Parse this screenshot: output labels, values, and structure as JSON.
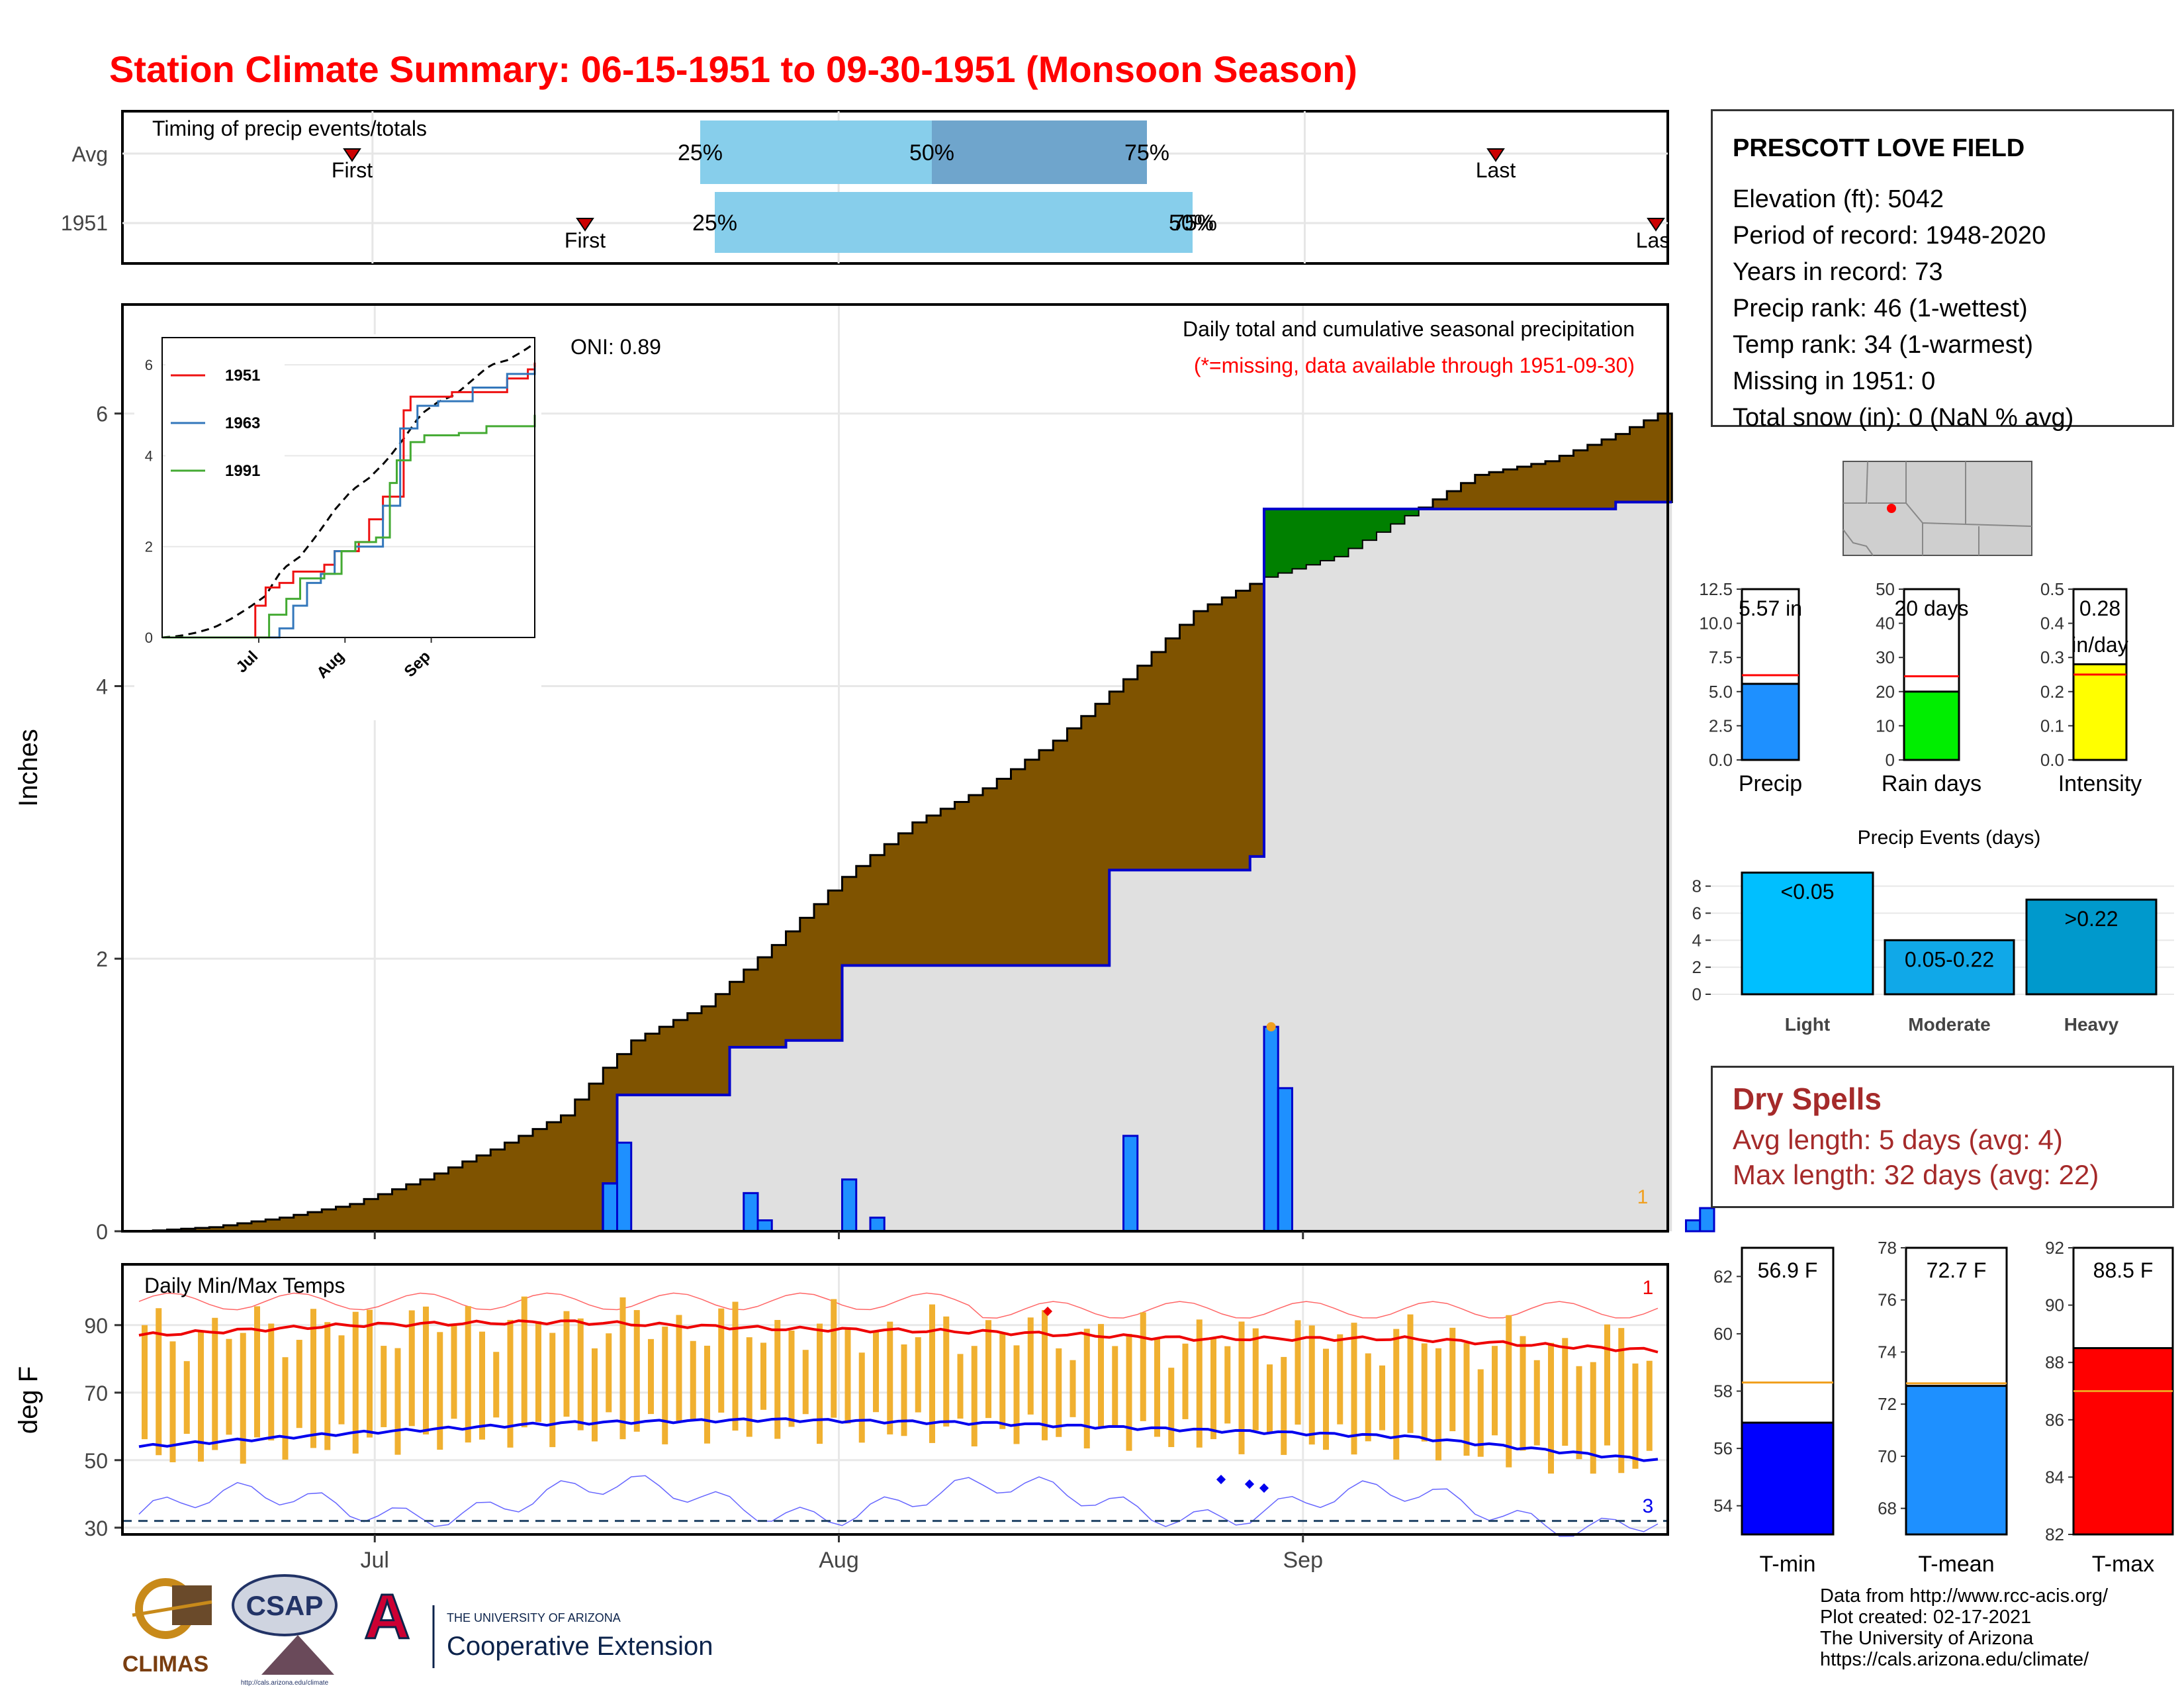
{
  "title": "Station Climate Summary: 06-15-1951 to 09-30-1951 (Monsoon Season)",
  "timing": {
    "label": "Timing of precip events/totals",
    "rows": [
      "Avg",
      "1951"
    ],
    "avg": {
      "first_label": "First",
      "last_label": "Last",
      "p25": "25%",
      "p50": "50%",
      "p75": "75%"
    },
    "year": {
      "first_label": "First",
      "last_label": "Last",
      "p25": "25%",
      "p50": "50%",
      "p75": "75%"
    },
    "colors": {
      "q1": "#87ceeb",
      "q2": "#6fa5cc",
      "marker": "#cc0000"
    }
  },
  "main": {
    "ylabel": "Inches",
    "oni": "ONI: 0.89",
    "caption": "Daily total and cumulative seasonal precipitation",
    "missing_note": "(*=missing, data available through 1951-09-30)",
    "yticks": [
      "0",
      "2",
      "4",
      "6"
    ],
    "xticks": [
      "Jul",
      "Aug",
      "Sep"
    ],
    "marker_1": "1",
    "colors": {
      "avg_fill": "#7f5300",
      "deficit": "#008000",
      "obs_fill": "#e0e0e0",
      "line": "#0000cc",
      "bars": "#1e90ff"
    }
  },
  "inset": {
    "yticks": [
      "0",
      "2",
      "4",
      "6"
    ],
    "xticks": [
      "Jul",
      "Aug",
      "Sep"
    ],
    "legend": [
      "1951",
      "1963",
      "1991"
    ],
    "colors": [
      "#ee1111",
      "#3377bb",
      "#44aa33"
    ]
  },
  "temps": {
    "label": "Daily Min/Max Temps",
    "ylabel": "deg F",
    "yticks": [
      "30",
      "50",
      "70",
      "90"
    ],
    "xticks": [
      "Jul",
      "Aug",
      "Sep"
    ],
    "marker_hi": "1",
    "marker_lo": "3"
  },
  "station": {
    "name": "PRESCOTT LOVE FIELD",
    "lines": [
      "Elevation (ft): 5042",
      "Period of record: 1948-2020",
      "Years in record: 73",
      "Precip rank: 46 (1-wettest)",
      "Temp rank: 34 (1-warmest)",
      "Missing in 1951: 0",
      "Total snow (in): 0 (NaN % avg)"
    ]
  },
  "summary_bars": [
    {
      "name": "Precip",
      "label": "5.57 in",
      "value": 5.57,
      "avg": 6.2,
      "max": 12.5,
      "yticks": [
        "0.0",
        "2.5",
        "5.0",
        "7.5",
        "10.0",
        "12.5"
      ],
      "color": "#1e90ff"
    },
    {
      "name": "Rain days",
      "label": "20 days",
      "value": 20,
      "avg": 24.5,
      "max": 50,
      "yticks": [
        "0",
        "10",
        "20",
        "30",
        "40",
        "50"
      ],
      "color": "#00ee00"
    },
    {
      "name": "Intensity",
      "label": "0.28",
      "label2": "in/day",
      "value": 0.28,
      "avg": 0.25,
      "max": 0.5,
      "yticks": [
        "0.0",
        "0.1",
        "0.2",
        "0.3",
        "0.4",
        "0.5"
      ],
      "color": "#ffff00"
    }
  ],
  "events": {
    "title": "Precip Events (days)",
    "yticks": [
      "0",
      "2",
      "4",
      "6",
      "8"
    ],
    "bars": [
      {
        "name": "Light",
        "label": "<0.05",
        "value": 9,
        "color": "#00bfff"
      },
      {
        "name": "Moderate",
        "label": "0.05-0.22",
        "value": 4,
        "color": "#10a8e8"
      },
      {
        "name": "Heavy",
        "label": ">0.22",
        "value": 7,
        "color": "#0099cc"
      }
    ]
  },
  "dry": {
    "title": "Dry Spells",
    "avg": "Avg length: 5 days (avg: 4)",
    "max": "Max length: 32 days (avg: 22)"
  },
  "temp_bars": [
    {
      "name": "T-min",
      "label": "56.9 F",
      "value": 56.9,
      "avg": 58.3,
      "min": 53,
      "max": 63,
      "yticks": [
        "54",
        "56",
        "58",
        "60",
        "62"
      ],
      "color": "#0000ff"
    },
    {
      "name": "T-mean",
      "label": "72.7 F",
      "value": 72.7,
      "avg": 72.8,
      "min": 67,
      "max": 78,
      "yticks": [
        "68",
        "70",
        "72",
        "74",
        "76",
        "78"
      ],
      "color": "#1e90ff"
    },
    {
      "name": "T-max",
      "label": "88.5 F",
      "value": 88.5,
      "avg": 87.0,
      "min": 82,
      "max": 92,
      "yticks": [
        "82",
        "84",
        "86",
        "88",
        "90",
        "92"
      ],
      "color": "#ff0000"
    }
  ],
  "credits": [
    "Data from http://www.rcc-acis.org/",
    "Plot created: 02-17-2021",
    "The University of Arizona",
    "https://cals.arizona.edu/climate/"
  ],
  "logos": {
    "climas": "CLIMAS",
    "csap": "CSAP",
    "csap_url": "http://cals.arizona.edu/climate",
    "ua_line1": "THE UNIVERSITY OF ARIZONA",
    "ua_line2": "Cooperative Extension"
  },
  "chart_data": {
    "type": "area",
    "title": "Station Climate Summary: 06-15-1951 to 09-30-1951 (Monsoon Season)",
    "ylabel": "Inches",
    "ylim": [
      0,
      6.8
    ],
    "x_range": [
      "1951-06-15",
      "1951-09-30"
    ],
    "series": [
      {
        "name": "avg_cumulative",
        "points": [
          [
            0,
            0
          ],
          [
            5,
            0.03
          ],
          [
            10,
            0.1
          ],
          [
            15,
            0.2
          ],
          [
            20,
            0.38
          ],
          [
            25,
            0.6
          ],
          [
            30,
            0.85
          ],
          [
            33,
            1.2
          ],
          [
            35,
            1.4
          ],
          [
            40,
            1.65
          ],
          [
            45,
            2.1
          ],
          [
            50,
            2.6
          ],
          [
            55,
            3.0
          ],
          [
            60,
            3.25
          ],
          [
            65,
            3.6
          ],
          [
            70,
            4.05
          ],
          [
            75,
            4.55
          ],
          [
            80,
            4.8
          ],
          [
            85,
            4.95
          ],
          [
            90,
            5.25
          ],
          [
            95,
            5.55
          ],
          [
            100,
            5.65
          ],
          [
            105,
            5.85
          ],
          [
            110,
            6.1
          ],
          [
            111,
            6.15
          ]
        ]
      },
      {
        "name": "obs_cumulative",
        "points": [
          [
            0,
            0
          ],
          [
            33,
            0.35
          ],
          [
            34,
            1.0
          ],
          [
            40,
            1.0
          ],
          [
            42,
            1.35
          ],
          [
            46,
            1.4
          ],
          [
            50,
            1.95
          ],
          [
            68,
            1.95
          ],
          [
            69,
            2.65
          ],
          [
            79,
            2.75
          ],
          [
            80,
            5.3
          ],
          [
            104,
            5.3
          ],
          [
            105,
            5.35
          ],
          [
            111,
            5.57
          ]
        ]
      }
    ],
    "daily_precip": [
      [
        33,
        0.35
      ],
      [
        34,
        0.65
      ],
      [
        43,
        0.28
      ],
      [
        44,
        0.08
      ],
      [
        50,
        0.38
      ],
      [
        52,
        0.1
      ],
      [
        70,
        0.7
      ],
      [
        80,
        1.5
      ],
      [
        81,
        1.05
      ],
      [
        110,
        0.08
      ],
      [
        111,
        0.17
      ]
    ],
    "temps": {
      "tmax_avg": [
        [
          0,
          87
        ],
        [
          15,
          90
        ],
        [
          30,
          91
        ],
        [
          45,
          89
        ],
        [
          60,
          88
        ],
        [
          75,
          86
        ],
        [
          90,
          86
        ],
        [
          105,
          83
        ],
        [
          111,
          82
        ]
      ],
      "tmin_avg": [
        [
          0,
          54
        ],
        [
          15,
          58
        ],
        [
          30,
          61
        ],
        [
          45,
          62
        ],
        [
          60,
          61
        ],
        [
          75,
          59
        ],
        [
          90,
          57
        ],
        [
          105,
          51
        ],
        [
          111,
          49
        ]
      ]
    }
  }
}
